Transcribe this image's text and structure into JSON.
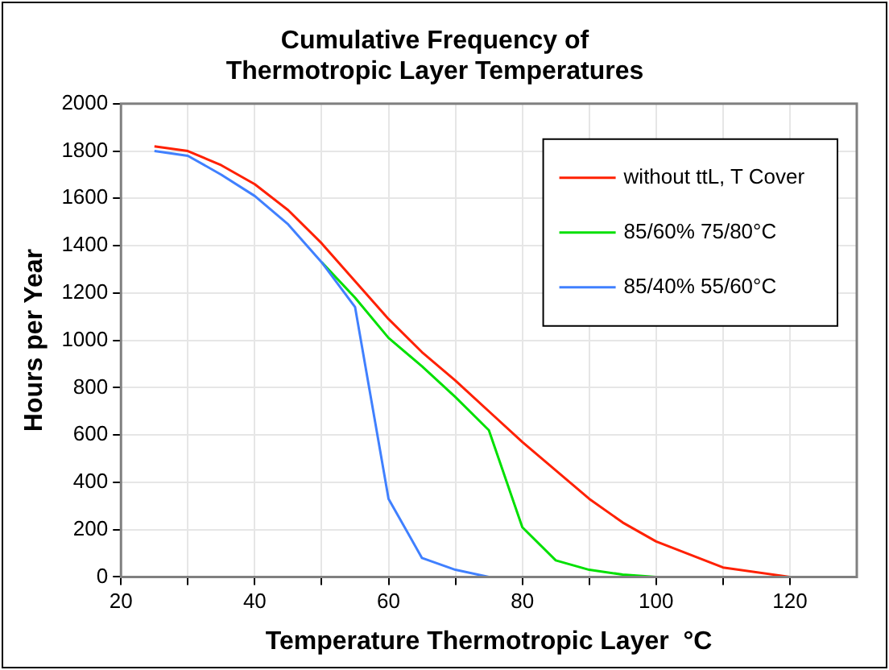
{
  "chart_data": {
    "type": "line",
    "title": "Cumulative Frequency of Thermotropic Layer Temperatures",
    "xlabel": "Temperature Thermotropic Layer  °C",
    "ylabel": "Hours per Year",
    "xlim": [
      20,
      130
    ],
    "xticks": [
      20,
      {
        "value": 30,
        "label": null
      },
      40,
      {
        "value": 50,
        "label": null
      },
      60,
      {
        "value": 70,
        "label": null
      },
      80,
      {
        "value": 90,
        "label": null
      },
      100,
      {
        "value": 110,
        "label": null
      },
      120
    ],
    "ylim": [
      0,
      2000
    ],
    "yticks": [
      0,
      200,
      400,
      600,
      800,
      1000,
      1200,
      1400,
      1600,
      1800,
      2000
    ],
    "grid": true,
    "legend": "top right",
    "marker": "none",
    "line_style": "solid",
    "series": [
      {
        "name": "without ttL, T Cover",
        "color": "#ff2000",
        "x": [
          25,
          30,
          35,
          40,
          45,
          50,
          55,
          60,
          65,
          70,
          75,
          80,
          85,
          90,
          95,
          100,
          110,
          120
        ],
        "values": [
          1820,
          1800,
          1740,
          1660,
          1550,
          1410,
          1250,
          1090,
          950,
          830,
          700,
          570,
          450,
          330,
          230,
          150,
          40,
          0
        ]
      },
      {
        "name": "85/60% 75/80°C",
        "color": "#00e000",
        "x": [
          50,
          55,
          60,
          65,
          70,
          75,
          80,
          85,
          90,
          95,
          100
        ],
        "values": [
          1330,
          1180,
          1010,
          890,
          760,
          620,
          210,
          70,
          30,
          10,
          0
        ]
      },
      {
        "name": "85/40% 55/60°C",
        "color": "#4080ff",
        "x": [
          25,
          30,
          35,
          40,
          45,
          50,
          55,
          60,
          65,
          70,
          75
        ],
        "values": [
          1800,
          1780,
          1700,
          1610,
          1490,
          1330,
          1140,
          330,
          80,
          30,
          0
        ]
      }
    ]
  }
}
